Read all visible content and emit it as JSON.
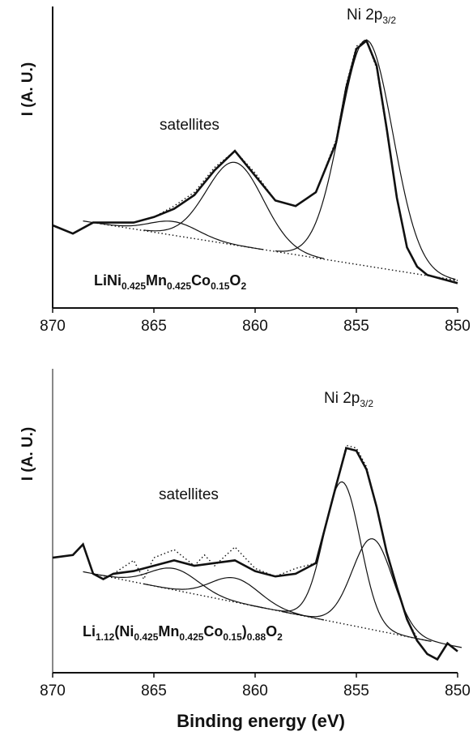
{
  "chart_data": [
    {
      "type": "line",
      "ylabel": "I (A. U.)",
      "xlabel": "",
      "xlim": [
        870,
        850
      ],
      "x_ticks": [
        "870",
        "865",
        "860",
        "855",
        "850"
      ],
      "y_ticks": false,
      "grid": false,
      "annotations": {
        "peak_main": "Ni 2p",
        "peak_main_sub": "3/2",
        "peak_sat": "satellites",
        "formula": [
          {
            "t": "LiNi",
            "sub": false
          },
          {
            "t": "0.425",
            "sub": true
          },
          {
            "t": "Mn",
            "sub": false
          },
          {
            "t": "0.425",
            "sub": true
          },
          {
            "t": "Co",
            "sub": false
          },
          {
            "t": "0.15",
            "sub": true
          },
          {
            "t": "O",
            "sub": false
          },
          {
            "t": "2",
            "sub": true
          }
        ]
      },
      "series": [
        {
          "style": "solid-thick",
          "x": [
            870,
            869,
            868,
            867,
            866,
            865,
            864,
            863,
            862,
            861,
            860,
            859,
            858,
            857,
            856,
            855.5,
            855,
            854.5,
            854,
            853.5,
            853,
            852.5,
            852,
            851.5,
            851,
            850.5,
            850
          ],
          "y": [
            0.3,
            0.27,
            0.31,
            0.31,
            0.31,
            0.33,
            0.36,
            0.41,
            0.5,
            0.57,
            0.48,
            0.39,
            0.37,
            0.42,
            0.6,
            0.8,
            0.94,
            0.97,
            0.88,
            0.65,
            0.4,
            0.22,
            0.15,
            0.12,
            0.11,
            0.1,
            0.09
          ]
        },
        {
          "style": "dotted",
          "x": [
            870,
            869,
            868,
            867,
            866,
            865,
            864,
            863,
            862,
            861,
            860,
            859,
            858,
            857,
            856,
            855.5,
            855,
            854.5,
            854,
            853.5,
            853,
            852.5,
            852,
            851.5,
            851,
            850.5,
            850
          ],
          "y": [
            0.3,
            0.27,
            0.31,
            0.31,
            0.31,
            0.33,
            0.37,
            0.42,
            0.51,
            0.57,
            0.49,
            0.39,
            0.37,
            0.42,
            0.61,
            0.81,
            0.95,
            0.97,
            0.87,
            0.64,
            0.4,
            0.22,
            0.15,
            0.12,
            0.11,
            0.1,
            0.1
          ]
        },
        {
          "style": "dotted",
          "x": [
            868,
            850
          ],
          "y": [
            0.31,
            0.1
          ]
        },
        {
          "style": "solid",
          "name": "",
          "peak": 864,
          "height": 0.05,
          "width": 1.2
        },
        {
          "style": "solid",
          "name": "",
          "peak": 861,
          "height": 0.3,
          "width": 1.4
        },
        {
          "style": "solid",
          "name": "",
          "peak": 854.5,
          "height": 0.82,
          "width": 1.3
        }
      ]
    },
    {
      "type": "line",
      "ylabel": "I (A. U.)",
      "xlabel": "Binding energy (eV)",
      "xlim": [
        870,
        850
      ],
      "x_ticks": [
        "870",
        "865",
        "860",
        "855",
        "850"
      ],
      "y_ticks": false,
      "grid": false,
      "annotations": {
        "peak_main": "Ni 2p",
        "peak_main_sub": "3/2",
        "peak_sat": "satellites",
        "formula": [
          {
            "t": "Li",
            "sub": false
          },
          {
            "t": "1.12",
            "sub": true
          },
          {
            "t": "(Ni",
            "sub": false
          },
          {
            "t": "0.425",
            "sub": true
          },
          {
            "t": "Mn",
            "sub": false
          },
          {
            "t": "0.425",
            "sub": true
          },
          {
            "t": "Co",
            "sub": false
          },
          {
            "t": "0.15",
            "sub": true
          },
          {
            "t": ")",
            "sub": false
          },
          {
            "t": "0.88",
            "sub": true
          },
          {
            "t": "O",
            "sub": false
          },
          {
            "t": "2",
            "sub": true
          }
        ]
      },
      "series": [
        {
          "style": "solid-thick",
          "x": [
            870,
            869,
            868.5,
            868,
            867.5,
            867,
            866,
            865,
            864,
            863,
            862,
            861,
            860,
            859,
            858,
            857,
            856,
            855.5,
            855,
            854.5,
            854,
            853.5,
            853,
            852.5,
            852,
            851.5,
            851,
            850.5,
            850
          ],
          "y": [
            0.43,
            0.44,
            0.48,
            0.37,
            0.35,
            0.37,
            0.38,
            0.4,
            0.42,
            0.4,
            0.41,
            0.42,
            0.38,
            0.36,
            0.37,
            0.41,
            0.7,
            0.84,
            0.83,
            0.76,
            0.62,
            0.45,
            0.32,
            0.2,
            0.12,
            0.07,
            0.05,
            0.11,
            0.08
          ]
        },
        {
          "style": "dotted",
          "x": [
            867,
            866,
            865.5,
            865,
            864,
            863,
            862.5,
            862,
            861,
            860,
            859,
            858,
            857,
            856,
            855.5,
            855,
            854.5,
            854,
            853.5,
            853,
            852.5,
            852
          ],
          "y": [
            0.37,
            0.42,
            0.35,
            0.43,
            0.46,
            0.4,
            0.44,
            0.4,
            0.47,
            0.39,
            0.36,
            0.39,
            0.41,
            0.7,
            0.85,
            0.84,
            0.77,
            0.62,
            0.45,
            0.32,
            0.2,
            0.13
          ]
        },
        {
          "style": "dotted",
          "x": [
            868,
            851.5
          ],
          "y": [
            0.37,
            0.12
          ]
        },
        {
          "style": "solid",
          "name": "",
          "peak": 864,
          "height": 0.08,
          "width": 1.2
        },
        {
          "style": "solid",
          "name": "",
          "peak": 861,
          "height": 0.09,
          "width": 1.2
        },
        {
          "style": "solid",
          "name": "",
          "peak": 855.7,
          "height": 0.53,
          "width": 0.9
        },
        {
          "style": "solid",
          "name": "",
          "peak": 854.2,
          "height": 0.34,
          "width": 1.0
        }
      ]
    }
  ]
}
